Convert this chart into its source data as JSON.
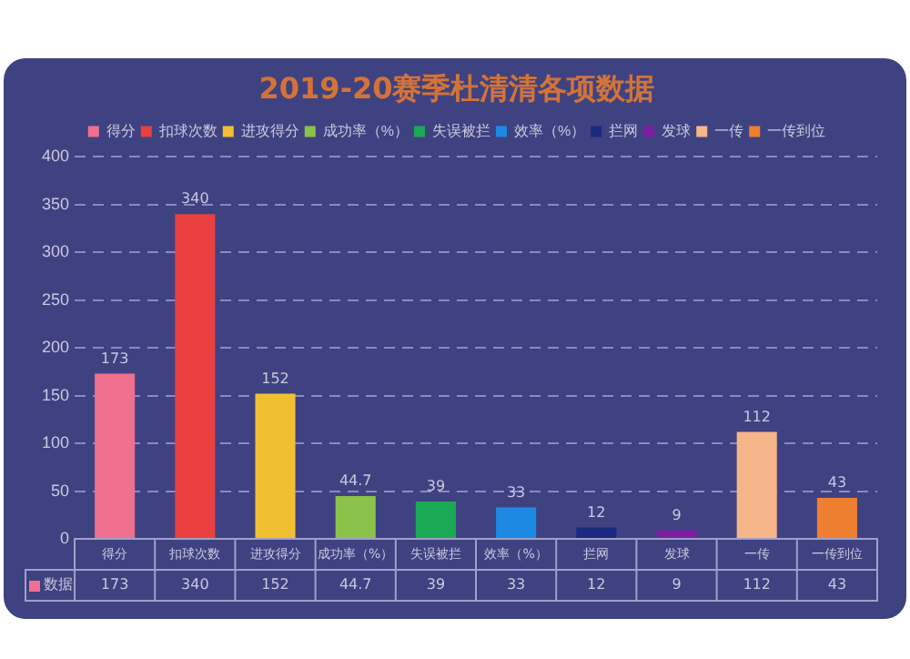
{
  "chart_data": {
    "type": "bar",
    "title": "2019-20赛季杜清清各项数据",
    "categories": [
      "得分",
      "扣球次数",
      "进攻得分",
      "成功率（%）",
      "失误被拦",
      "效率（%）",
      "拦网",
      "发球",
      "一传",
      "一传到位"
    ],
    "series": [
      {
        "name": "得分",
        "color": "#f07090",
        "values": [
          173,
          null,
          null,
          null,
          null,
          null,
          null,
          null,
          null,
          null
        ]
      },
      {
        "name": "扣球次数",
        "color": "#e8403f",
        "values": [
          null,
          340,
          null,
          null,
          null,
          null,
          null,
          null,
          null,
          null
        ]
      },
      {
        "name": "进攻得分",
        "color": "#f0c030",
        "values": [
          null,
          null,
          152,
          null,
          null,
          null,
          null,
          null,
          null,
          null
        ]
      },
      {
        "name": "成功率（%）",
        "color": "#8bc34a",
        "values": [
          null,
          null,
          null,
          44.7,
          null,
          null,
          null,
          null,
          null,
          null
        ]
      },
      {
        "name": "失误被拦",
        "color": "#1aaa55",
        "values": [
          null,
          null,
          null,
          null,
          39,
          null,
          null,
          null,
          null,
          null
        ]
      },
      {
        "name": "效率（%）",
        "color": "#1e88e5",
        "values": [
          null,
          null,
          null,
          null,
          null,
          33,
          null,
          null,
          null,
          null
        ]
      },
      {
        "name": "拦网",
        "color": "#1a2a80",
        "values": [
          null,
          null,
          null,
          null,
          null,
          null,
          12,
          null,
          null,
          null
        ]
      },
      {
        "name": "发球",
        "color": "#7b1fa2",
        "values": [
          null,
          null,
          null,
          null,
          null,
          null,
          null,
          9,
          null,
          null
        ]
      },
      {
        "name": "一传",
        "color": "#f7b58a",
        "values": [
          null,
          null,
          null,
          null,
          null,
          null,
          null,
          null,
          112,
          null
        ]
      },
      {
        "name": "一传到位",
        "color": "#ef7f30",
        "values": [
          null,
          null,
          null,
          null,
          null,
          null,
          null,
          null,
          null,
          43
        ]
      }
    ],
    "annotations": [
      "数据",
      "173",
      "340",
      "152",
      "44.7",
      "39",
      "33",
      "12",
      "9",
      "112",
      "43"
    ],
    "ylim": [
      0,
      400
    ],
    "yticks": [
      0,
      50,
      100,
      150,
      200,
      250,
      300,
      350,
      400
    ],
    "grid": "y",
    "legend": "top",
    "data_labels": true
  }
}
